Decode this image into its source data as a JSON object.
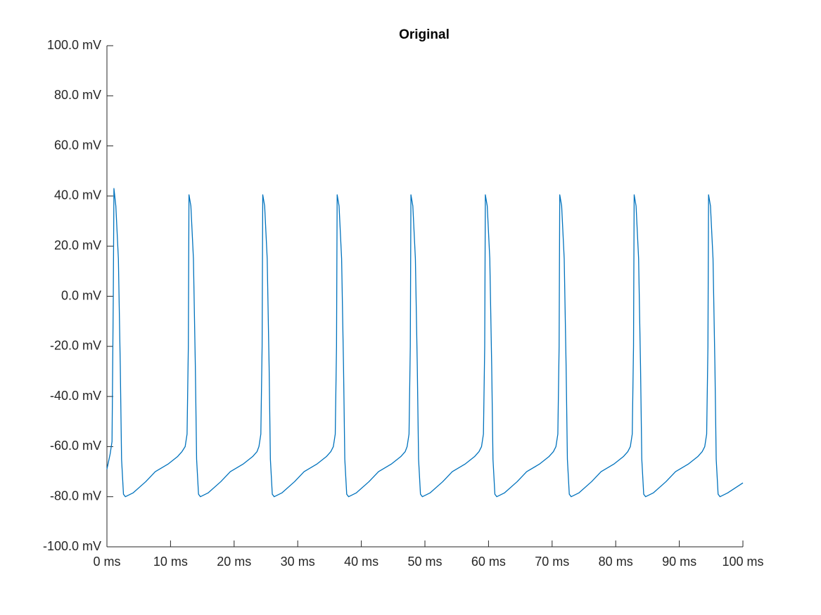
{
  "chart_data": {
    "type": "line",
    "title": "Original",
    "color": "#0072bd",
    "xlim": [
      0,
      100
    ],
    "ylim": [
      -100,
      100
    ],
    "xticks": [
      {
        "value": 0,
        "label": "0 ms"
      },
      {
        "value": 10,
        "label": "10 ms"
      },
      {
        "value": 20,
        "label": "20 ms"
      },
      {
        "value": 30,
        "label": "30 ms"
      },
      {
        "value": 40,
        "label": "40 ms"
      },
      {
        "value": 50,
        "label": "50 ms"
      },
      {
        "value": 60,
        "label": "60 ms"
      },
      {
        "value": 70,
        "label": "70 ms"
      },
      {
        "value": 80,
        "label": "80 ms"
      },
      {
        "value": 90,
        "label": "90 ms"
      },
      {
        "value": 100,
        "label": "100 ms"
      }
    ],
    "yticks": [
      {
        "value": -100,
        "label": "-100.0 mV"
      },
      {
        "value": -80,
        "label": "-80.0 mV"
      },
      {
        "value": -60,
        "label": "-60.0 mV"
      },
      {
        "value": -40,
        "label": "-40.0 mV"
      },
      {
        "value": -20,
        "label": "-20.0 mV"
      },
      {
        "value": 0,
        "label": "0.0 mV"
      },
      {
        "value": 20,
        "label": "20.0 mV"
      },
      {
        "value": 40,
        "label": "40.0 mV"
      },
      {
        "value": 60,
        "label": "60.0 mV"
      },
      {
        "value": 80,
        "label": "80.0 mV"
      },
      {
        "value": 100,
        "label": "100.0 mV"
      }
    ],
    "x": [
      0,
      0.5,
      0.8,
      1.0,
      1.1,
      1.4,
      1.8,
      2.1,
      2.3,
      2.6,
      2.9,
      4.1,
      6.1,
      7.6,
      9.6,
      11.1,
      11.8,
      12.3,
      12.6,
      12.8,
      12.9,
      13.2,
      13.6,
      13.9,
      14.1,
      14.4,
      14.7,
      15.9,
      17.9,
      19.4,
      21.4,
      22.9,
      23.6,
      23.9,
      24.2,
      24.4,
      24.5,
      24.8,
      25.2,
      25.5,
      25.7,
      26.0,
      26.3,
      27.5,
      29.5,
      31.0,
      33.0,
      34.5,
      35.2,
      35.6,
      35.9,
      36.1,
      36.2,
      36.5,
      36.9,
      37.2,
      37.4,
      37.7,
      38.0,
      39.2,
      41.2,
      42.7,
      44.7,
      46.2,
      46.9,
      47.2,
      47.5,
      47.7,
      47.8,
      48.1,
      48.5,
      48.8,
      49.0,
      49.3,
      49.6,
      50.8,
      52.8,
      54.3,
      56.3,
      57.8,
      58.5,
      58.9,
      59.2,
      59.4,
      59.5,
      59.8,
      60.2,
      60.5,
      60.7,
      61.0,
      61.3,
      62.5,
      64.5,
      66.0,
      68.0,
      69.5,
      70.2,
      70.6,
      70.9,
      71.1,
      71.2,
      71.5,
      71.9,
      72.2,
      72.4,
      72.7,
      73.0,
      74.2,
      76.2,
      77.7,
      79.7,
      81.2,
      81.9,
      82.3,
      82.6,
      82.8,
      82.9,
      83.2,
      83.6,
      83.9,
      84.1,
      84.4,
      84.7,
      85.9,
      87.9,
      89.4,
      91.4,
      92.9,
      93.6,
      94.0,
      94.3,
      94.5,
      94.6,
      94.9,
      95.3,
      95.6,
      95.8,
      96.1,
      96.4,
      97.6,
      100
    ],
    "values": [
      -69,
      -63,
      -58,
      0,
      43,
      36,
      15,
      -28,
      -65,
      -79,
      -80,
      -78.5,
      -74,
      -70,
      -67,
      -64,
      -62,
      -60,
      -55,
      -20,
      40.5,
      36,
      15,
      -28,
      -65,
      -79,
      -80,
      -78.5,
      -74,
      -70,
      -67,
      -64,
      -62,
      -60,
      -55,
      -20,
      40.5,
      36,
      15,
      -28,
      -65,
      -79,
      -80,
      -78.5,
      -74,
      -70,
      -67,
      -64,
      -62,
      -60,
      -55,
      -20,
      40.5,
      36,
      15,
      -28,
      -65,
      -79,
      -80,
      -78.5,
      -74,
      -70,
      -67,
      -64,
      -62,
      -60,
      -55,
      -20,
      40.5,
      36,
      15,
      -28,
      -65,
      -79,
      -80,
      -78.5,
      -74,
      -70,
      -67,
      -64,
      -62,
      -60,
      -55,
      -20,
      40.5,
      36,
      15,
      -28,
      -65,
      -79,
      -80,
      -78.5,
      -74,
      -70,
      -67,
      -64,
      -62,
      -60,
      -55,
      -20,
      40.5,
      36,
      15,
      -28,
      -65,
      -79,
      -80,
      -78.5,
      -74,
      -70,
      -67,
      -64,
      -62,
      -60,
      -55,
      -20,
      40.5,
      36,
      15,
      -28,
      -65,
      -79,
      -80,
      -78.5,
      -74,
      -70,
      -67,
      -64,
      -62,
      -60,
      -55,
      -20,
      40.5,
      36,
      15,
      -28,
      -65,
      -79,
      -80,
      -78.5,
      -74.5
    ]
  }
}
